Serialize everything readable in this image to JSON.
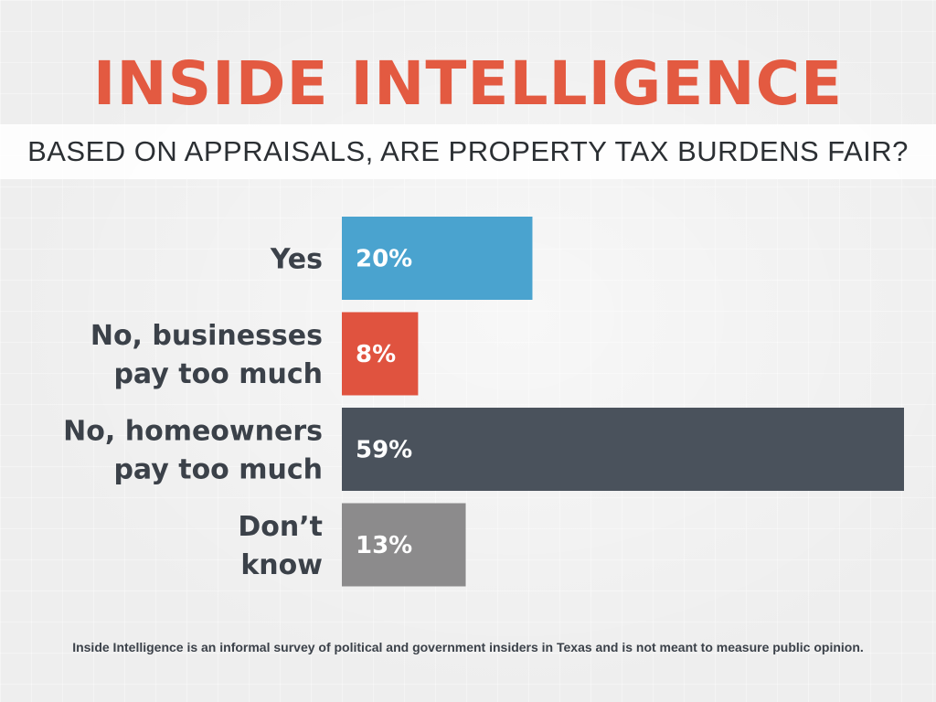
{
  "header": {
    "title": "INSIDE INTELLIGENCE",
    "subtitle": "BASED ON APPRAISALS, ARE PROPERTY TAX BURDENS FAIR?"
  },
  "colors": {
    "title": "#e35a41",
    "yes": "#4aa3cf",
    "businesses": "#e0533f",
    "homeowners": "#4a525c",
    "dont_know": "#8c8b8c"
  },
  "chart_data": {
    "type": "bar",
    "orientation": "horizontal",
    "title": "BASED ON APPRAISALS, ARE PROPERTY TAX BURDENS FAIR?",
    "xlabel": "",
    "ylabel": "",
    "xlim": [
      0,
      59
    ],
    "grid": false,
    "unit": "%",
    "categories": [
      [
        "Yes"
      ],
      [
        "No, businesses",
        "pay too much"
      ],
      [
        "No, homeowners",
        "pay too much"
      ],
      [
        "Don’t",
        "know"
      ]
    ],
    "values": [
      20,
      8,
      59,
      13
    ],
    "value_labels": [
      "20%",
      "8%",
      "59%",
      "13%"
    ],
    "bar_colors": [
      "#4aa3cf",
      "#e0533f",
      "#4a525c",
      "#8c8b8c"
    ]
  },
  "footer": {
    "note": "Inside Intelligence is an informal survey of political and government insiders in Texas and is not meant to measure public opinion."
  }
}
